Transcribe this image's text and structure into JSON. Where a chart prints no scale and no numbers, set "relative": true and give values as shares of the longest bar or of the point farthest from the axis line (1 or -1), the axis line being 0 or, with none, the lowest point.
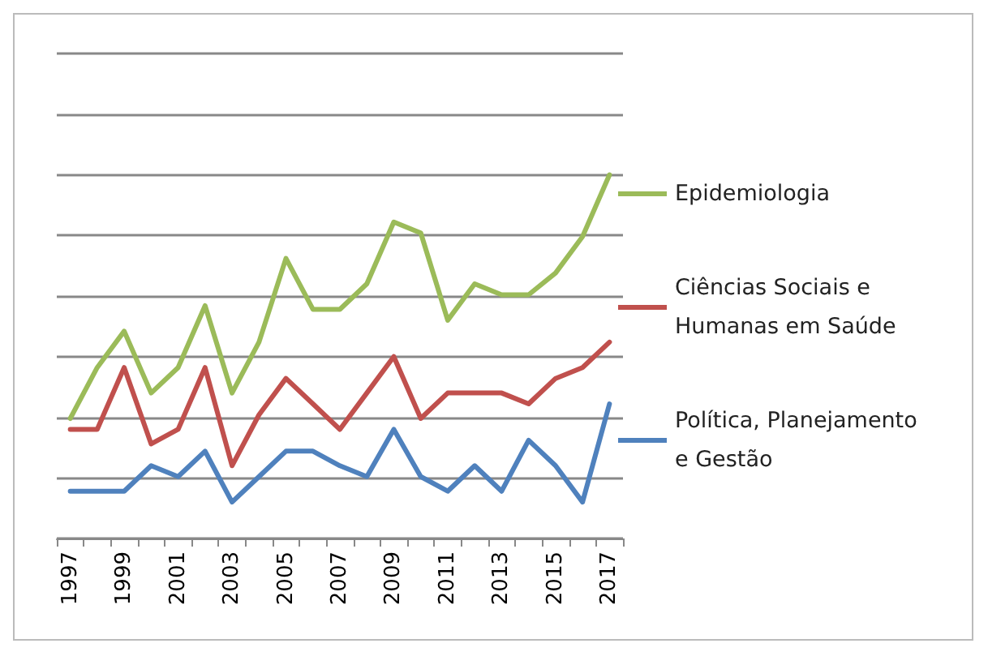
{
  "chart_data": {
    "type": "line",
    "relative": true,
    "categories": [
      "1997",
      null,
      "1999",
      null,
      "2001",
      null,
      "2003",
      null,
      "2005",
      null,
      "2007",
      null,
      "2009",
      null,
      "2011",
      null,
      "2013",
      null,
      "2015",
      null,
      "2017"
    ],
    "series": [
      {
        "name": "Epidemiologia",
        "color": "#9bbb59",
        "values": [
          0.33,
          0.47,
          0.57,
          0.4,
          0.47,
          0.64,
          0.4,
          0.54,
          0.77,
          0.63,
          0.63,
          0.7,
          0.87,
          0.84,
          0.6,
          0.7,
          0.67,
          0.67,
          0.73,
          0.83,
          1
        ]
      },
      {
        "name": "Ciências Sociais e Humanas em Saúde",
        "color": "#c0504d",
        "values": [
          0.3,
          0.3,
          0.47,
          0.26,
          0.3,
          0.47,
          0.2,
          0.34,
          0.44,
          0.37,
          0.3,
          0.4,
          0.5,
          0.33,
          0.4,
          0.4,
          0.4,
          0.37,
          0.44,
          0.47,
          0.54
        ]
      },
      {
        "name": "Política, Planejamento e Gestão",
        "color": "#4f81bd",
        "values": [
          0.13,
          0.13,
          0.13,
          0.2,
          0.17,
          0.24,
          0.1,
          0.17,
          0.24,
          0.24,
          0.2,
          0.17,
          0.3,
          0.17,
          0.13,
          0.2,
          0.13,
          0.27,
          0.2,
          0.1,
          0.37
        ]
      }
    ],
    "grid": "y",
    "legend": "right",
    "marker": "none",
    "line_style": "solid"
  }
}
